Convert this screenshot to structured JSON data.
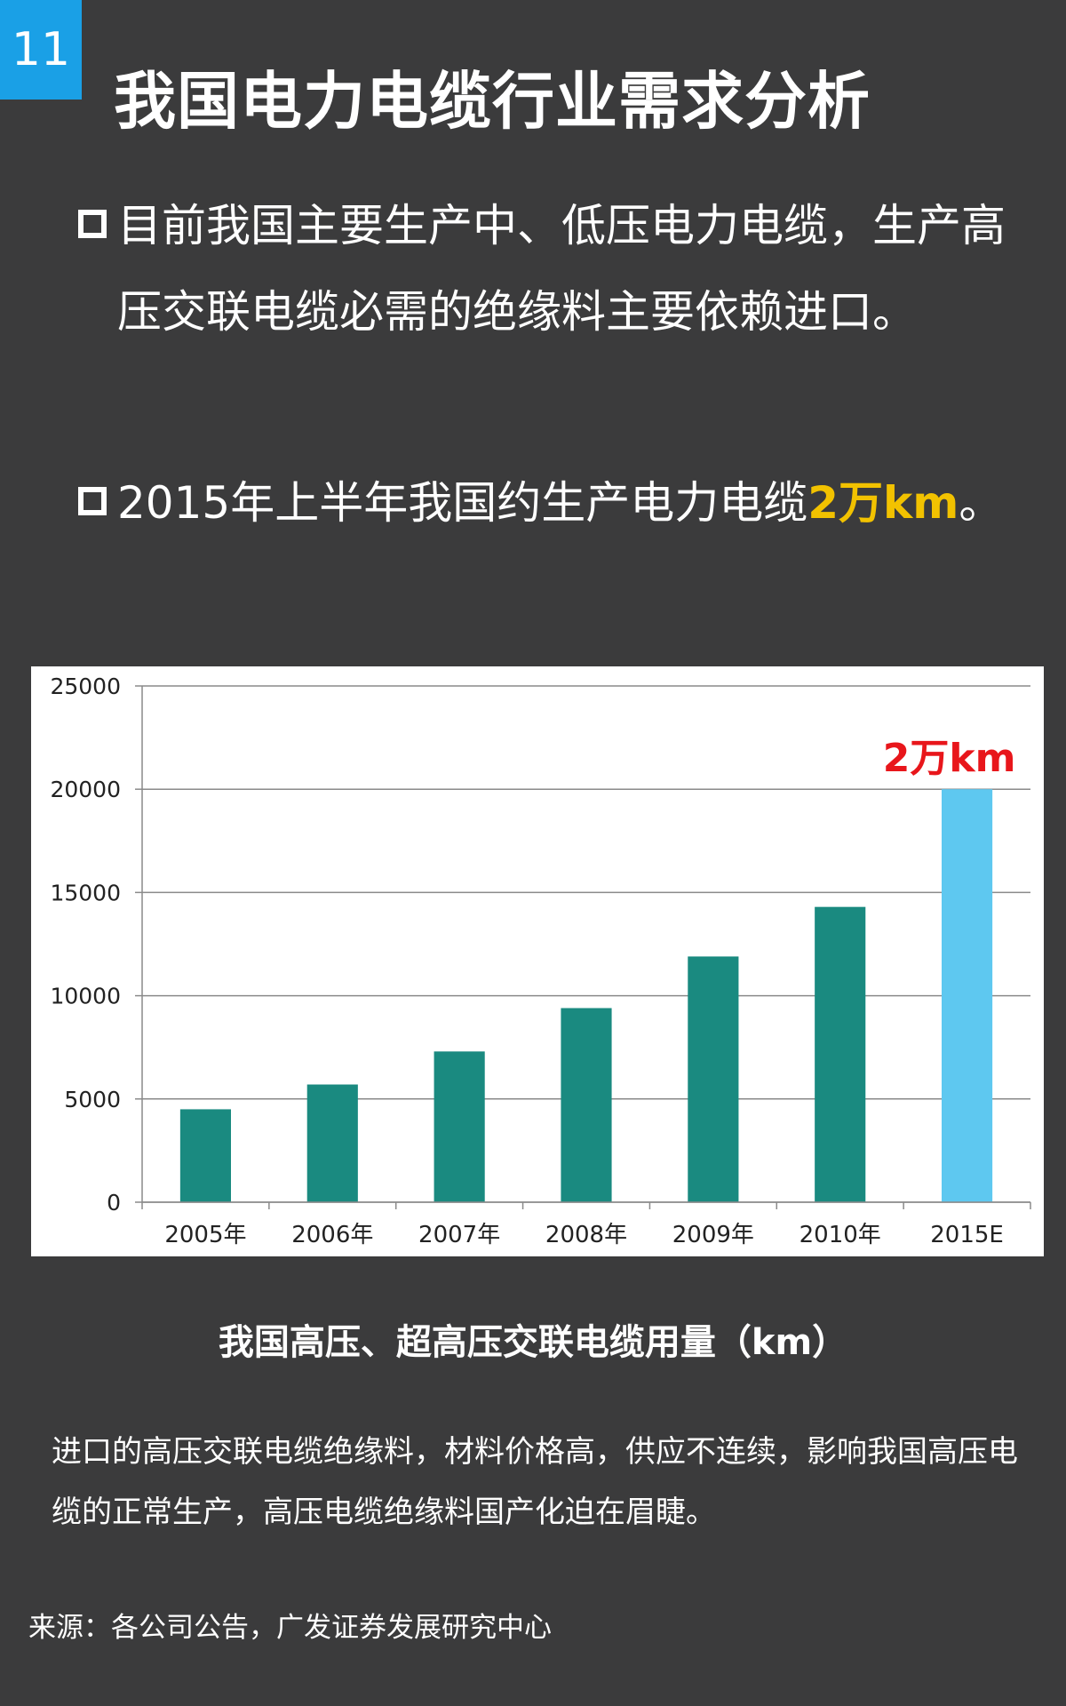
{
  "slide": {
    "number": "11",
    "title": "我国电力电缆行业需求分析"
  },
  "bullets": [
    {
      "text": "目前我国主要生产中、低压电力电缆，生产高压交联电缆必需的绝缘料主要依赖进口。"
    },
    {
      "text_before": "2015年上半年我国约生产电力电缆",
      "highlight": "2万km",
      "text_after": "。"
    }
  ],
  "chart_data": {
    "type": "bar",
    "categories": [
      "2005年",
      "2006年",
      "2007年",
      "2008年",
      "2009年",
      "2010年",
      "2015E"
    ],
    "values": [
      4500,
      5700,
      7300,
      9400,
      11900,
      14300,
      20000
    ],
    "ylim": [
      0,
      25000
    ],
    "yticks": [
      "0",
      "5000",
      "10000",
      "15000",
      "20000",
      "25000"
    ],
    "grid": true,
    "colors": [
      "#1a8a80",
      "#1a8a80",
      "#1a8a80",
      "#1a8a80",
      "#1a8a80",
      "#1a8a80",
      "#5ec8f0"
    ],
    "annotation": {
      "category": "2015E",
      "text": "2万km",
      "color": "#e8161b"
    },
    "title": "我国高压、超高压交联电缆用量（km）"
  },
  "note": "进口的高压交联电缆绝缘料，材料价格高，供应不连续，影响我国高压电缆的正常生产，高压电缆绝缘料国产化迫在眉睫。",
  "source": "来源：各公司公告，广发证券发展研究中心",
  "colors": {
    "background": "#3b3b3c",
    "badge": "#1aa0e6",
    "highlight": "#f2c200"
  }
}
